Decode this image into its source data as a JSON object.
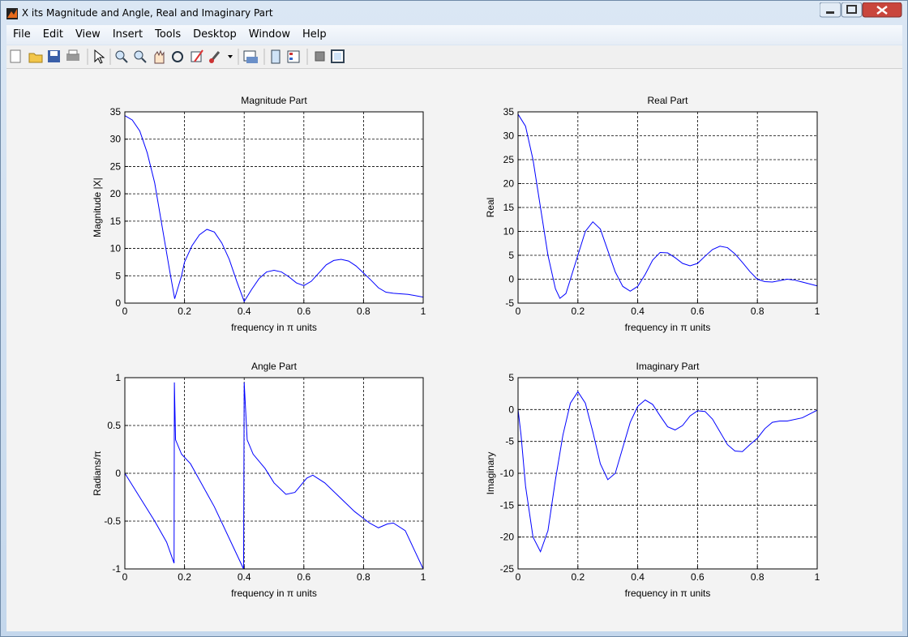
{
  "window": {
    "title": "X its Magnitude and Angle, Real and Imaginary Part",
    "menu": [
      "File",
      "Edit",
      "View",
      "Insert",
      "Tools",
      "Desktop",
      "Window",
      "Help"
    ]
  },
  "chart_data": [
    {
      "type": "line",
      "title": "Magnitude Part",
      "x_label": "frequency in π units",
      "y_label": "Magnitude |X|",
      "color": "#0000ff",
      "grid": true,
      "xlim": [
        0,
        1
      ],
      "ylim": [
        0,
        35
      ],
      "xticks": [
        0,
        0.2,
        0.4,
        0.6,
        0.8,
        1
      ],
      "yticks": [
        0,
        5,
        10,
        15,
        20,
        25,
        30,
        35
      ],
      "x": [
        0,
        0.025,
        0.05,
        0.075,
        0.1,
        0.125,
        0.15,
        0.167,
        0.19,
        0.2,
        0.225,
        0.25,
        0.275,
        0.3,
        0.325,
        0.35,
        0.375,
        0.4,
        0.425,
        0.45,
        0.475,
        0.5,
        0.525,
        0.55,
        0.575,
        0.6,
        0.625,
        0.65,
        0.675,
        0.7,
        0.725,
        0.75,
        0.775,
        0.8,
        0.825,
        0.85,
        0.875,
        0.9,
        0.95,
        1
      ],
      "values": [
        34.3,
        33.5,
        31.5,
        27.5,
        22,
        14,
        6,
        0.8,
        5,
        7.5,
        10.5,
        12.5,
        13.5,
        13,
        11,
        8,
        4,
        0.3,
        2.5,
        4.5,
        5.7,
        6,
        5.7,
        4.8,
        3.7,
        3.2,
        4,
        5.5,
        7,
        7.8,
        8,
        7.7,
        6.8,
        5.5,
        4.2,
        2.8,
        2,
        1.8,
        1.6,
        1.1
      ]
    },
    {
      "type": "line",
      "title": "Real Part",
      "x_label": "frequency in π units",
      "y_label": "Real",
      "color": "#0000ff",
      "grid": true,
      "xlim": [
        0,
        1
      ],
      "ylim": [
        -5,
        35
      ],
      "xticks": [
        0,
        0.2,
        0.4,
        0.6,
        0.8,
        1
      ],
      "yticks": [
        -5,
        0,
        5,
        10,
        15,
        20,
        25,
        30,
        35
      ],
      "x": [
        0,
        0.025,
        0.05,
        0.075,
        0.1,
        0.125,
        0.14,
        0.16,
        0.175,
        0.2,
        0.225,
        0.25,
        0.275,
        0.3,
        0.325,
        0.35,
        0.375,
        0.4,
        0.425,
        0.45,
        0.475,
        0.5,
        0.525,
        0.55,
        0.575,
        0.6,
        0.625,
        0.65,
        0.675,
        0.7,
        0.725,
        0.75,
        0.775,
        0.8,
        0.825,
        0.85,
        0.875,
        0.9,
        0.925,
        0.95,
        0.975,
        1
      ],
      "values": [
        34.5,
        32,
        25,
        15,
        5,
        -2,
        -4,
        -3,
        0,
        5,
        10,
        12,
        10.5,
        6,
        1.5,
        -1.5,
        -2.5,
        -1.5,
        1,
        4,
        5.6,
        5.5,
        4.5,
        3.3,
        2.8,
        3.3,
        4.8,
        6.2,
        6.9,
        6.6,
        5.3,
        3.5,
        1.6,
        0,
        -0.5,
        -0.6,
        -0.3,
        0,
        -0.2,
        -0.6,
        -1,
        -1.4
      ]
    },
    {
      "type": "line",
      "title": "Angle Part",
      "x_label": "frequency in π units",
      "y_label": "Radians/π",
      "color": "#0000ff",
      "grid": true,
      "xlim": [
        0,
        1
      ],
      "ylim": [
        -1,
        1
      ],
      "xticks": [
        0,
        0.2,
        0.4,
        0.6,
        0.8,
        1
      ],
      "yticks": [
        -1,
        -0.5,
        0,
        0.5,
        1
      ],
      "x": [
        0,
        0.05,
        0.1,
        0.14,
        0.165,
        0.166,
        0.17,
        0.19,
        0.22,
        0.3,
        0.398,
        0.4,
        0.41,
        0.43,
        0.47,
        0.5,
        0.54,
        0.57,
        0.61,
        0.63,
        0.67,
        0.72,
        0.77,
        0.82,
        0.85,
        0.88,
        0.9,
        0.94,
        0.97,
        1
      ],
      "values": [
        0,
        -0.25,
        -0.5,
        -0.72,
        -0.94,
        0.95,
        0.35,
        0.2,
        0.1,
        -0.35,
        -1,
        0.95,
        0.35,
        0.2,
        0.05,
        -0.1,
        -0.22,
        -0.2,
        -0.05,
        -0.02,
        -0.1,
        -0.25,
        -0.4,
        -0.52,
        -0.57,
        -0.53,
        -0.52,
        -0.6,
        -0.8,
        -1
      ]
    },
    {
      "type": "line",
      "title": "Imaginary Part",
      "x_label": "frequency in π units",
      "y_label": "Imaginary",
      "color": "#0000ff",
      "grid": true,
      "xlim": [
        0,
        1
      ],
      "ylim": [
        -25,
        5
      ],
      "xticks": [
        0,
        0.2,
        0.4,
        0.6,
        0.8,
        1
      ],
      "yticks": [
        -25,
        -20,
        -15,
        -10,
        -5,
        0,
        5
      ],
      "x": [
        0,
        0.01,
        0.025,
        0.05,
        0.075,
        0.1,
        0.125,
        0.15,
        0.175,
        0.2,
        0.225,
        0.25,
        0.275,
        0.3,
        0.325,
        0.35,
        0.375,
        0.4,
        0.425,
        0.45,
        0.475,
        0.5,
        0.525,
        0.55,
        0.575,
        0.6,
        0.625,
        0.65,
        0.675,
        0.7,
        0.725,
        0.75,
        0.775,
        0.8,
        0.825,
        0.85,
        0.875,
        0.9,
        0.95,
        1
      ],
      "values": [
        0,
        -4,
        -12,
        -20,
        -22.3,
        -19,
        -11,
        -4,
        1,
        2.8,
        1,
        -3.5,
        -8.5,
        -11,
        -10,
        -6,
        -2,
        0.5,
        1.5,
        0.8,
        -1,
        -2.7,
        -3.2,
        -2.5,
        -1,
        -0.2,
        -0.3,
        -1.5,
        -3.5,
        -5.5,
        -6.5,
        -6.6,
        -5.5,
        -4.5,
        -3,
        -2,
        -1.8,
        -1.8,
        -1.3,
        -0.1
      ]
    }
  ]
}
